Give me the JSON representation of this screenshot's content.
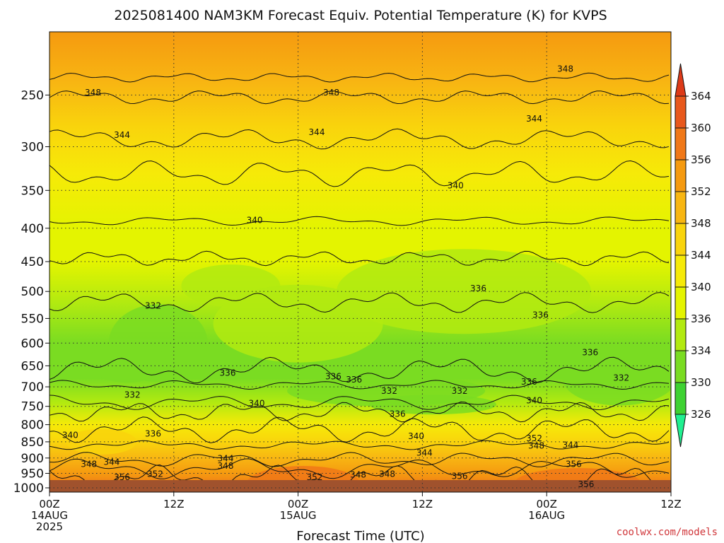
{
  "chart_data": {
    "type": "heatmap",
    "title": "2025081400 NAM3KM Forecast Equiv. Potential Temperature (K) for KVPS",
    "xlabel": "Forecast Time (UTC)",
    "ylabel": "",
    "credit": "coolwx.com/models",
    "x_range_hours": [
      0,
      60
    ],
    "y_range_hPa": [
      1015,
      200
    ],
    "y_scale": "log-pressure",
    "grid": "dotted",
    "y_ticks": [
      250,
      300,
      350,
      400,
      450,
      500,
      550,
      600,
      650,
      700,
      750,
      800,
      850,
      900,
      950,
      1000
    ],
    "x_ticks": [
      {
        "hour": 0,
        "line1": "00Z",
        "line2": "14AUG",
        "line3": "2025"
      },
      {
        "hour": 12,
        "line1": "12Z",
        "line2": "",
        "line3": ""
      },
      {
        "hour": 24,
        "line1": "00Z",
        "line2": "15AUG",
        "line3": ""
      },
      {
        "hour": 36,
        "line1": "12Z",
        "line2": "",
        "line3": ""
      },
      {
        "hour": 48,
        "line1": "00Z",
        "line2": "16AUG",
        "line3": ""
      },
      {
        "hour": 60,
        "line1": "12Z",
        "line2": "",
        "line3": ""
      }
    ],
    "colorbar": {
      "ticks": [
        "364",
        "360",
        "356",
        "352",
        "348",
        "344",
        "340",
        "336",
        "334",
        "330",
        "326"
      ],
      "colors": [
        "#e8581c",
        "#f07818",
        "#f59a10",
        "#f8b612",
        "#f9d40c",
        "#f6ea08",
        "#e4f400",
        "#b2ea10",
        "#7adc22",
        "#3ed232",
        "#12e66a"
      ],
      "top_arrow_color": "#dd3a18",
      "bottom_arrow_color": "#20f090",
      "orientation": "vertical",
      "placement": "right"
    },
    "ground_color": "#a0522d",
    "level_profile": [
      {
        "p": 200,
        "theta": 352
      },
      {
        "p": 240,
        "theta": 349
      },
      {
        "p": 280,
        "theta": 346
      },
      {
        "p": 330,
        "theta": 342
      },
      {
        "p": 400,
        "theta": 339
      },
      {
        "p": 450,
        "theta": 337
      },
      {
        "p": 520,
        "theta": 334
      },
      {
        "p": 600,
        "theta": 333
      },
      {
        "p": 680,
        "theta": 333
      },
      {
        "p": 740,
        "theta": 335
      },
      {
        "p": 800,
        "theta": 340
      },
      {
        "p": 850,
        "theta": 345
      },
      {
        "p": 900,
        "theta": 350
      },
      {
        "p": 950,
        "theta": 354
      },
      {
        "p": 1000,
        "theta": 357
      }
    ],
    "contour_levels": [
      {
        "value": "348",
        "p": 235
      },
      {
        "value": "348",
        "p": 252
      },
      {
        "value": "344",
        "p": 292
      },
      {
        "value": "340",
        "p": 330
      },
      {
        "value": "340",
        "p": 390
      },
      {
        "value": "336",
        "p": 445
      },
      {
        "value": "336",
        "p": 520
      },
      {
        "value": "336",
        "p": 660
      },
      {
        "value": "332",
        "p": 695
      },
      {
        "value": "336",
        "p": 740
      },
      {
        "value": "340",
        "p": 765
      },
      {
        "value": "340",
        "p": 815
      },
      {
        "value": "344",
        "p": 860
      },
      {
        "value": "348",
        "p": 905
      },
      {
        "value": "352",
        "p": 935
      },
      {
        "value": "356",
        "p": 965
      }
    ],
    "contour_labels": [
      {
        "text": "348",
        "hour": 49.8,
        "p": 228
      },
      {
        "text": "348",
        "hour": 4.2,
        "p": 248
      },
      {
        "text": "348",
        "hour": 27.2,
        "p": 248
      },
      {
        "text": "344",
        "hour": 7.0,
        "p": 288
      },
      {
        "text": "344",
        "hour": 25.8,
        "p": 285
      },
      {
        "text": "344",
        "hour": 46.8,
        "p": 272
      },
      {
        "text": "340",
        "hour": 39.2,
        "p": 344
      },
      {
        "text": "340",
        "hour": 19.8,
        "p": 389
      },
      {
        "text": "336",
        "hour": 41.4,
        "p": 495
      },
      {
        "text": "336",
        "hour": 47.4,
        "p": 543
      },
      {
        "text": "332",
        "hour": 10.0,
        "p": 526
      },
      {
        "text": "336",
        "hour": 52.2,
        "p": 620
      },
      {
        "text": "336",
        "hour": 17.2,
        "p": 667
      },
      {
        "text": "332",
        "hour": 55.2,
        "p": 678
      },
      {
        "text": "336",
        "hour": 27.4,
        "p": 675
      },
      {
        "text": "336",
        "hour": 29.4,
        "p": 683
      },
      {
        "text": "336",
        "hour": 46.3,
        "p": 688
      },
      {
        "text": "332",
        "hour": 8.0,
        "p": 720
      },
      {
        "text": "332",
        "hour": 32.8,
        "p": 710
      },
      {
        "text": "332",
        "hour": 39.6,
        "p": 710
      },
      {
        "text": "340",
        "hour": 20.0,
        "p": 742
      },
      {
        "text": "340",
        "hour": 46.8,
        "p": 735
      },
      {
        "text": "336",
        "hour": 33.6,
        "p": 770
      },
      {
        "text": "336",
        "hour": 10.0,
        "p": 826
      },
      {
        "text": "340",
        "hour": 35.4,
        "p": 833
      },
      {
        "text": "340",
        "hour": 2.0,
        "p": 830
      },
      {
        "text": "352",
        "hour": 46.8,
        "p": 840
      },
      {
        "text": "344",
        "hour": 50.3,
        "p": 860
      },
      {
        "text": "348",
        "hour": 47.0,
        "p": 862
      },
      {
        "text": "344",
        "hour": 36.2,
        "p": 884
      },
      {
        "text": "344",
        "hour": 17.0,
        "p": 902
      },
      {
        "text": "344",
        "hour": 6.0,
        "p": 913
      },
      {
        "text": "348",
        "hour": 3.8,
        "p": 920
      },
      {
        "text": "348",
        "hour": 17.0,
        "p": 925
      },
      {
        "text": "356",
        "hour": 50.6,
        "p": 920
      },
      {
        "text": "352",
        "hour": 10.2,
        "p": 953
      },
      {
        "text": "352",
        "hour": 25.6,
        "p": 963
      },
      {
        "text": "348",
        "hour": 29.8,
        "p": 955
      },
      {
        "text": "348",
        "hour": 32.6,
        "p": 952
      },
      {
        "text": "356",
        "hour": 39.6,
        "p": 960
      },
      {
        "text": "356",
        "hour": 7.0,
        "p": 963
      },
      {
        "text": "356",
        "hour": 51.8,
        "p": 988
      }
    ]
  }
}
